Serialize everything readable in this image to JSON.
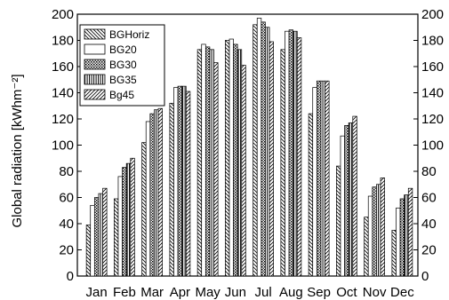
{
  "chart_data": {
    "type": "bar",
    "title": "",
    "xlabel": "",
    "ylabel": "Global radiation [kWhm⁻²]",
    "ylim": [
      0,
      200
    ],
    "yticks": [
      0,
      20,
      40,
      60,
      80,
      100,
      120,
      140,
      160,
      180,
      200
    ],
    "right_axis_ticks": true,
    "grid": false,
    "legend_position": "top-left",
    "categories": [
      "Jan",
      "Feb",
      "Mar",
      "Apr",
      "May",
      "Jun",
      "Jul",
      "Aug",
      "Sep",
      "Oct",
      "Nov",
      "Dec"
    ],
    "series": [
      {
        "name": "BGHoriz",
        "pattern": "backslash-hatch",
        "values": [
          39,
          59,
          102,
          132,
          173,
          180,
          192,
          173,
          124,
          84,
          45,
          35
        ]
      },
      {
        "name": "BG20",
        "pattern": "blank",
        "values": [
          54,
          76,
          118,
          144,
          177,
          181,
          197,
          187,
          144,
          107,
          61,
          52
        ]
      },
      {
        "name": "BG30",
        "pattern": "crosshatch",
        "values": [
          60,
          83,
          124,
          145,
          175,
          177,
          194,
          188,
          149,
          115,
          68,
          59
        ]
      },
      {
        "name": "BG35",
        "pattern": "vertical-lines",
        "values": [
          63,
          86,
          127,
          145,
          173,
          173,
          190,
          187,
          149,
          117,
          70,
          62
        ]
      },
      {
        "name": "Bg45",
        "pattern": "slash-hatch",
        "values": [
          67,
          90,
          128,
          141,
          163,
          161,
          179,
          182,
          149,
          122,
          75,
          67
        ]
      }
    ]
  }
}
